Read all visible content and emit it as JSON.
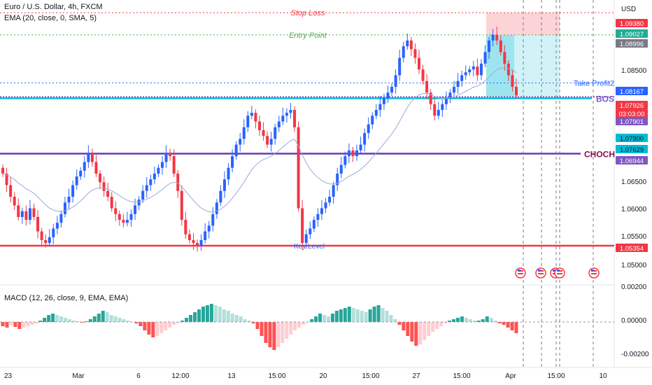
{
  "header": {
    "symbol_line": "Euro / U.S. Dollar, 4h, FXCM",
    "indicator_line": "EMA (20, close, 0, SMA, 5)",
    "currency": "USD"
  },
  "macd": {
    "label": "MACD (12, 26, close, 9, EMA, EMA)",
    "ticks": [
      "0.00200",
      "0.00000",
      "-0.00200"
    ],
    "values": [
      -0.0003,
      -0.0004,
      -0.00025,
      -0.00035,
      -0.0005,
      -0.0004,
      -0.0003,
      -0.0002,
      -0.0001,
      0.0001,
      0.0003,
      0.0005,
      0.0006,
      0.0005,
      0.0004,
      0.0003,
      0.0002,
      0.0001,
      5e-05,
      -5e-05,
      5e-05,
      0.0002,
      0.0004,
      0.0006,
      0.0008,
      0.0007,
      0.0005,
      0.0004,
      0.0003,
      0.0002,
      0.0001,
      0.0,
      -0.0001,
      -0.0003,
      -0.0006,
      -0.0009,
      -0.0011,
      -0.001,
      -0.0008,
      -0.0006,
      -0.0004,
      -0.0002,
      -0.0001,
      0.0001,
      0.0003,
      0.0005,
      0.0007,
      0.0009,
      0.0011,
      0.0012,
      0.0013,
      0.0012,
      0.0011,
      0.0009,
      0.0008,
      0.0006,
      0.0005,
      0.0004,
      0.0002,
      0.0001,
      -0.0001,
      -0.0005,
      -0.001,
      -0.0015,
      -0.0018,
      -0.002,
      -0.0018,
      -0.0015,
      -0.0012,
      -0.0009,
      -0.0006,
      -0.0004,
      -0.0002,
      0.0,
      0.0002,
      0.0004,
      0.0006,
      0.0005,
      0.0004,
      0.0006,
      0.0008,
      0.0009,
      0.001,
      0.0011,
      0.001,
      0.0009,
      0.0008,
      0.0007,
      0.0009,
      0.0011,
      0.0012,
      0.001,
      0.0008,
      0.0005,
      0.0002,
      -0.0002,
      -0.0006,
      -0.001,
      -0.0014,
      -0.0017,
      -0.0016,
      -0.0013,
      -0.001,
      -0.0007,
      -0.0005,
      -0.0003,
      -0.0001,
      0.0001,
      0.0002,
      0.0003,
      0.0004,
      0.0003,
      0.0002,
      0.0001,
      0.0001,
      0.0002,
      0.0004,
      0.0003,
      0.0001,
      -0.0001,
      -0.0002,
      -0.0004,
      -0.0006,
      -0.0008
    ]
  },
  "price_axis": {
    "ticks": [
      "1.08500",
      "1.06500",
      "1.06000",
      "1.05500",
      "1.05000"
    ],
    "badges": [
      {
        "text": "1.09380",
        "bg": "#f23645",
        "fg": "#ffffff"
      },
      {
        "text": "1.09027",
        "bg": "#22ab94",
        "fg": "#ffffff"
      },
      {
        "text": "1.08996",
        "bg": "#787b86",
        "fg": "#ffffff"
      },
      {
        "text": "1.08167",
        "bg": "#2962ff",
        "fg": "#ffffff"
      },
      {
        "text": "1.07926",
        "bg": "#f23645",
        "fg": "#ffffff"
      },
      {
        "text": "03:03:00",
        "bg": "#f23645",
        "fg": "#ffffff"
      },
      {
        "text": "1.07901",
        "bg": "#7e57c2",
        "fg": "#ffffff"
      },
      {
        "text": "1.07900",
        "bg": "#00bcd4",
        "fg": "#131722"
      },
      {
        "text": "1.07629",
        "bg": "#00bcd4",
        "fg": "#131722"
      },
      {
        "text": "1.06944",
        "bg": "#7e57c2",
        "fg": "#ffffff"
      },
      {
        "text": "1.05354",
        "bg": "#f23645",
        "fg": "#ffffff"
      }
    ]
  },
  "time_axis": {
    "labels": [
      "23",
      "Mar",
      "6",
      "12:00",
      "13",
      "15:00",
      "20",
      "15:00",
      "27",
      "15:00",
      "Apr",
      "15:00",
      "10"
    ]
  },
  "annotations": {
    "stop_loss": "Stop Loss",
    "entry_point": "Entry Point",
    "take_profit": "Take Profit2",
    "bos": "BOS",
    "choch": "CHOCH",
    "key_level": "Key Level"
  },
  "colors": {
    "up": "#2962ff",
    "down": "#f23645",
    "macd_up_strong": "#26a69a",
    "macd_up_weak": "#b2dfdb",
    "macd_down_strong": "#ff5252",
    "macd_down_weak": "#ffcdd2",
    "bos_line": "#00bcd4",
    "choch_line": "#673ab7",
    "key_line": "#f23645",
    "ema": "#9fa8da"
  },
  "chart_data": {
    "type": "candlestick",
    "title": "Euro / U.S. Dollar, 4h, FXCM",
    "ylim": [
      1.047,
      1.096
    ],
    "levels": {
      "stop_loss": 1.0938,
      "entry": 1.08996,
      "take_profit": 1.08167,
      "current": 1.07926,
      "bos": 1.07901,
      "choch": 1.06944,
      "key_level": 1.05354
    },
    "closes": [
      1.066,
      1.064,
      1.062,
      1.0605,
      1.0585,
      1.0595,
      1.058,
      1.06,
      1.0585,
      1.056,
      1.0545,
      1.054,
      1.055,
      1.0565,
      1.0575,
      1.059,
      1.061,
      1.062,
      1.064,
      1.0655,
      1.0665,
      1.068,
      1.0695,
      1.068,
      1.066,
      1.0645,
      1.063,
      1.062,
      1.06,
      1.059,
      1.058,
      1.0575,
      1.058,
      1.059,
      1.0605,
      1.0615,
      1.063,
      1.064,
      1.065,
      1.066,
      1.067,
      1.068,
      1.0695,
      1.069,
      1.066,
      1.063,
      1.058,
      1.0555,
      1.0545,
      1.054,
      1.0535,
      1.0545,
      1.056,
      1.057,
      1.059,
      1.061,
      1.063,
      1.065,
      1.067,
      1.069,
      1.071,
      1.072,
      1.074,
      1.076,
      1.0765,
      1.075,
      1.0735,
      1.0725,
      1.071,
      1.072,
      1.074,
      1.075,
      1.076,
      1.0765,
      1.077,
      1.074,
      1.06,
      1.054,
      1.0555,
      1.0565,
      1.058,
      1.059,
      1.06,
      1.061,
      1.062,
      1.064,
      1.066,
      1.0675,
      1.069,
      1.07,
      1.069,
      1.07,
      1.071,
      1.073,
      1.0745,
      1.076,
      1.077,
      1.078,
      1.079,
      1.08,
      1.081,
      1.083,
      1.086,
      1.088,
      1.089,
      1.0875,
      1.086,
      1.084,
      1.082,
      1.08,
      1.078,
      1.076,
      1.077,
      1.078,
      1.079,
      1.08,
      1.081,
      1.082,
      1.083,
      1.0835,
      1.084,
      1.0845,
      1.083,
      1.085,
      1.087,
      1.089,
      1.09,
      1.089,
      1.087,
      1.085,
      1.083,
      1.081,
      1.0795
    ]
  }
}
